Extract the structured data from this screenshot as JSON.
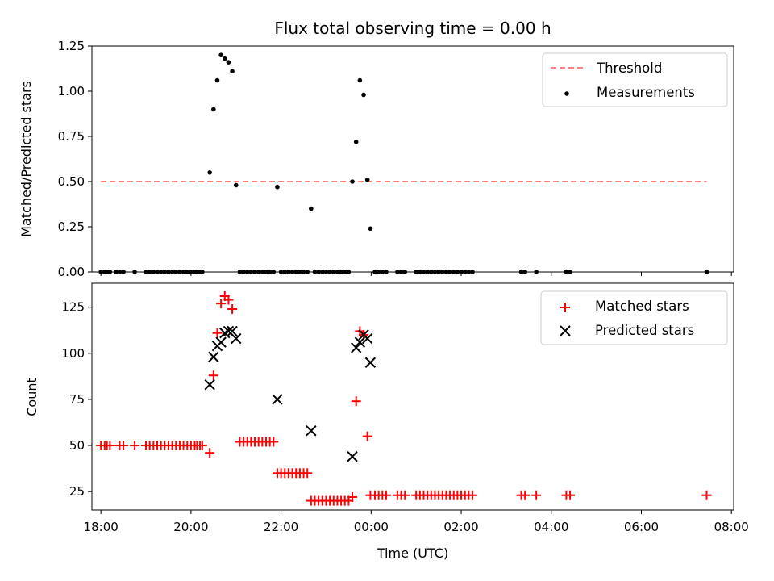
{
  "title": "Flux total observing time = 0.00 h",
  "colors": {
    "threshold": "#ff7f7f",
    "measurement": "#000000",
    "matched": "#ff0000",
    "predicted": "#000000"
  },
  "chart_data": [
    {
      "type": "scatter",
      "ylabel": "Matched/Predicted stars",
      "xlim": [
        17.8,
        8.05
      ],
      "ylim": [
        0.0,
        1.25
      ],
      "yticks": [
        "0.00",
        "0.25",
        "0.50",
        "0.75",
        "1.00",
        "1.25"
      ],
      "legend": {
        "placement": "top-right",
        "entries": [
          "Threshold",
          "Measurements"
        ]
      },
      "threshold": {
        "name": "Threshold",
        "value": 0.5,
        "x_range": [
          "18:00",
          "07:27"
        ]
      },
      "measurements": {
        "name": "Measurements",
        "points": [
          [
            "18:00",
            0
          ],
          [
            "18:05",
            0
          ],
          [
            "18:08",
            0
          ],
          [
            "18:12",
            0
          ],
          [
            "18:20",
            0
          ],
          [
            "18:25",
            0
          ],
          [
            "18:30",
            0
          ],
          [
            "18:45",
            0
          ],
          [
            "19:00",
            0
          ],
          [
            "19:05",
            0
          ],
          [
            "19:10",
            0
          ],
          [
            "19:15",
            0
          ],
          [
            "19:20",
            0
          ],
          [
            "19:25",
            0
          ],
          [
            "19:30",
            0
          ],
          [
            "19:35",
            0
          ],
          [
            "19:40",
            0
          ],
          [
            "19:45",
            0
          ],
          [
            "19:50",
            0
          ],
          [
            "19:55",
            0
          ],
          [
            "20:00",
            0
          ],
          [
            "20:05",
            0
          ],
          [
            "20:08",
            0
          ],
          [
            "20:12",
            0
          ],
          [
            "20:15",
            0
          ],
          [
            "20:25",
            0.55
          ],
          [
            "20:30",
            0.9
          ],
          [
            "20:35",
            1.06
          ],
          [
            "20:40",
            1.2
          ],
          [
            "20:45",
            1.18
          ],
          [
            "20:50",
            1.16
          ],
          [
            "20:55",
            1.11
          ],
          [
            "21:00",
            0.48
          ],
          [
            "21:05",
            0
          ],
          [
            "21:10",
            0
          ],
          [
            "21:15",
            0
          ],
          [
            "21:20",
            0
          ],
          [
            "21:25",
            0
          ],
          [
            "21:30",
            0
          ],
          [
            "21:35",
            0
          ],
          [
            "21:40",
            0
          ],
          [
            "21:45",
            0
          ],
          [
            "21:50",
            0
          ],
          [
            "21:55",
            0.47
          ],
          [
            "22:00",
            0
          ],
          [
            "22:05",
            0
          ],
          [
            "22:10",
            0
          ],
          [
            "22:15",
            0
          ],
          [
            "22:20",
            0
          ],
          [
            "22:25",
            0
          ],
          [
            "22:30",
            0
          ],
          [
            "22:35",
            0
          ],
          [
            "22:40",
            0.35
          ],
          [
            "22:45",
            0
          ],
          [
            "22:50",
            0
          ],
          [
            "22:55",
            0
          ],
          [
            "23:00",
            0
          ],
          [
            "23:05",
            0
          ],
          [
            "23:10",
            0
          ],
          [
            "23:15",
            0
          ],
          [
            "23:20",
            0
          ],
          [
            "23:25",
            0
          ],
          [
            "23:30",
            0
          ],
          [
            "23:35",
            0.5
          ],
          [
            "23:40",
            0.72
          ],
          [
            "23:45",
            1.06
          ],
          [
            "23:50",
            0.98
          ],
          [
            "23:55",
            0.51
          ],
          [
            "23:59",
            0.24
          ],
          [
            "00:05",
            0
          ],
          [
            "00:10",
            0
          ],
          [
            "00:15",
            0
          ],
          [
            "00:20",
            0
          ],
          [
            "00:35",
            0
          ],
          [
            "00:40",
            0
          ],
          [
            "00:45",
            0
          ],
          [
            "01:00",
            0
          ],
          [
            "01:05",
            0
          ],
          [
            "01:10",
            0
          ],
          [
            "01:15",
            0
          ],
          [
            "01:20",
            0
          ],
          [
            "01:25",
            0
          ],
          [
            "01:30",
            0
          ],
          [
            "01:35",
            0
          ],
          [
            "01:40",
            0
          ],
          [
            "01:45",
            0
          ],
          [
            "01:50",
            0
          ],
          [
            "01:55",
            0
          ],
          [
            "02:00",
            0
          ],
          [
            "02:05",
            0
          ],
          [
            "02:10",
            0
          ],
          [
            "02:15",
            0
          ],
          [
            "03:20",
            0
          ],
          [
            "03:25",
            0
          ],
          [
            "03:40",
            0
          ],
          [
            "04:20",
            0
          ],
          [
            "04:25",
            0
          ],
          [
            "07:27",
            0
          ]
        ]
      }
    },
    {
      "type": "scatter",
      "xlabel": "Time (UTC)",
      "ylabel": "Count",
      "xlim": [
        17.8,
        8.05
      ],
      "ylim": [
        15,
        138
      ],
      "yticks": [
        "25",
        "50",
        "75",
        "100",
        "125"
      ],
      "xticks": [
        "18:00",
        "20:00",
        "22:00",
        "00:00",
        "02:00",
        "04:00",
        "06:00",
        "08:00"
      ],
      "legend": {
        "placement": "top-right",
        "entries": [
          "Matched stars",
          "Predicted stars"
        ]
      },
      "matched": {
        "name": "Matched stars",
        "points": [
          [
            "18:00",
            50
          ],
          [
            "18:05",
            50
          ],
          [
            "18:08",
            50
          ],
          [
            "18:12",
            50
          ],
          [
            "18:25",
            50
          ],
          [
            "18:30",
            50
          ],
          [
            "18:45",
            50
          ],
          [
            "19:00",
            50
          ],
          [
            "19:05",
            50
          ],
          [
            "19:10",
            50
          ],
          [
            "19:15",
            50
          ],
          [
            "19:20",
            50
          ],
          [
            "19:25",
            50
          ],
          [
            "19:30",
            50
          ],
          [
            "19:35",
            50
          ],
          [
            "19:40",
            50
          ],
          [
            "19:45",
            50
          ],
          [
            "19:50",
            50
          ],
          [
            "19:55",
            50
          ],
          [
            "20:00",
            50
          ],
          [
            "20:05",
            50
          ],
          [
            "20:08",
            50
          ],
          [
            "20:12",
            50
          ],
          [
            "20:15",
            50
          ],
          [
            "20:25",
            46
          ],
          [
            "20:30",
            88
          ],
          [
            "20:35",
            111
          ],
          [
            "20:40",
            127
          ],
          [
            "20:45",
            131
          ],
          [
            "20:50",
            129
          ],
          [
            "20:55",
            124
          ],
          [
            "21:05",
            52
          ],
          [
            "21:10",
            52
          ],
          [
            "21:15",
            52
          ],
          [
            "21:20",
            52
          ],
          [
            "21:25",
            52
          ],
          [
            "21:30",
            52
          ],
          [
            "21:35",
            52
          ],
          [
            "21:40",
            52
          ],
          [
            "21:45",
            52
          ],
          [
            "21:50",
            52
          ],
          [
            "21:55",
            35
          ],
          [
            "22:00",
            35
          ],
          [
            "22:05",
            35
          ],
          [
            "22:10",
            35
          ],
          [
            "22:15",
            35
          ],
          [
            "22:20",
            35
          ],
          [
            "22:25",
            35
          ],
          [
            "22:30",
            35
          ],
          [
            "22:35",
            35
          ],
          [
            "22:40",
            20
          ],
          [
            "22:45",
            20
          ],
          [
            "22:50",
            20
          ],
          [
            "22:55",
            20
          ],
          [
            "23:00",
            20
          ],
          [
            "23:05",
            20
          ],
          [
            "23:10",
            20
          ],
          [
            "23:15",
            20
          ],
          [
            "23:20",
            20
          ],
          [
            "23:25",
            20
          ],
          [
            "23:30",
            20
          ],
          [
            "23:35",
            22
          ],
          [
            "23:40",
            74
          ],
          [
            "23:45",
            112
          ],
          [
            "23:50",
            110
          ],
          [
            "23:55",
            55
          ],
          [
            "23:59",
            23
          ],
          [
            "00:05",
            23
          ],
          [
            "00:10",
            23
          ],
          [
            "00:15",
            23
          ],
          [
            "00:20",
            23
          ],
          [
            "00:35",
            23
          ],
          [
            "00:40",
            23
          ],
          [
            "00:45",
            23
          ],
          [
            "01:00",
            23
          ],
          [
            "01:05",
            23
          ],
          [
            "01:10",
            23
          ],
          [
            "01:15",
            23
          ],
          [
            "01:20",
            23
          ],
          [
            "01:25",
            23
          ],
          [
            "01:30",
            23
          ],
          [
            "01:35",
            23
          ],
          [
            "01:40",
            23
          ],
          [
            "01:45",
            23
          ],
          [
            "01:50",
            23
          ],
          [
            "01:55",
            23
          ],
          [
            "02:00",
            23
          ],
          [
            "02:05",
            23
          ],
          [
            "02:10",
            23
          ],
          [
            "02:15",
            23
          ],
          [
            "03:20",
            23
          ],
          [
            "03:25",
            23
          ],
          [
            "03:40",
            23
          ],
          [
            "04:20",
            23
          ],
          [
            "04:25",
            23
          ],
          [
            "07:27",
            23
          ]
        ]
      },
      "predicted": {
        "name": "Predicted stars",
        "points": [
          [
            "20:25",
            83
          ],
          [
            "20:30",
            98
          ],
          [
            "20:35",
            104
          ],
          [
            "20:40",
            106
          ],
          [
            "20:45",
            111
          ],
          [
            "20:50",
            112
          ],
          [
            "20:55",
            112
          ],
          [
            "21:00",
            108
          ],
          [
            "21:55",
            75
          ],
          [
            "22:40",
            58
          ],
          [
            "23:35",
            44
          ],
          [
            "23:40",
            103
          ],
          [
            "23:45",
            106
          ],
          [
            "23:50",
            110
          ],
          [
            "23:55",
            108
          ],
          [
            "23:59",
            95
          ]
        ]
      }
    }
  ]
}
